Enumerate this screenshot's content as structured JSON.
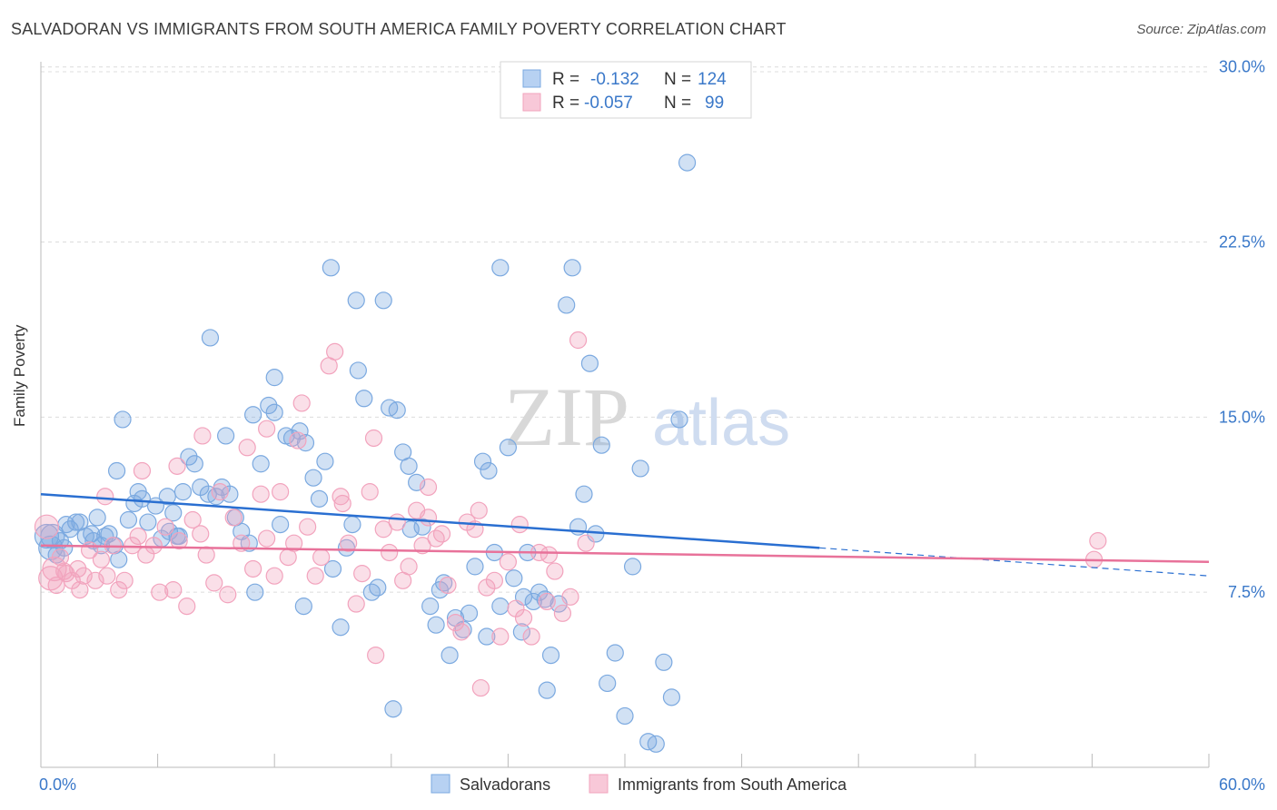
{
  "header": {
    "title": "SALVADORAN VS IMMIGRANTS FROM SOUTH AMERICA FAMILY POVERTY CORRELATION CHART",
    "source": "Source: ZipAtlas.com"
  },
  "watermark": {
    "zip": "ZIP",
    "atlas": "atlas"
  },
  "colors": {
    "blue": "#7ba9e0",
    "blue_line": "#2a6fd1",
    "pink": "#f2a3bd",
    "pink_line": "#e8729a",
    "grid": "#dcdcdc",
    "tick_label": "#3a78c9"
  },
  "chart_data": {
    "type": "scatter",
    "title": "SALVADORAN VS IMMIGRANTS FROM SOUTH AMERICA FAMILY POVERTY CORRELATION CHART",
    "xlabel": "",
    "ylabel": "Family Poverty",
    "xlim": [
      0,
      60
    ],
    "ylim": [
      0,
      31
    ],
    "x_tick_labels": [
      "0.0%",
      "60.0%"
    ],
    "y_ticks": [
      7.5,
      15.0,
      22.5,
      30.0
    ],
    "y_tick_labels": [
      "7.5%",
      "15.0%",
      "22.5%",
      "30.0%"
    ],
    "grid": "horizontal dashed",
    "legend_top": [
      {
        "r_label": "R =",
        "r_value": "-0.132",
        "n_label": "N =",
        "n_value": "124",
        "color": "blue"
      },
      {
        "r_label": "R =",
        "r_value": "-0.057",
        "n_label": "N =",
        "n_value": "99",
        "color": "pink"
      }
    ],
    "legend_bottom": [
      "Salvadorans",
      "Immigrants from South America"
    ],
    "series": [
      {
        "name": "Salvadorans",
        "color": "blue",
        "trend": {
          "x0": 0,
          "y0": 11.7,
          "x1": 40,
          "y1": 9.4,
          "dash_x1": 60,
          "dash_y1": 8.2
        },
        "points": [
          [
            0.3,
            9.9
          ],
          [
            0.5,
            9.4
          ],
          [
            0.6,
            9.9
          ],
          [
            0.8,
            9.1
          ],
          [
            1.0,
            9.7
          ],
          [
            1.2,
            9.4
          ],
          [
            1.5,
            10.2
          ],
          [
            1.8,
            10.5
          ],
          [
            2.0,
            10.5
          ],
          [
            2.3,
            9.9
          ],
          [
            2.6,
            10.0
          ],
          [
            2.9,
            10.7
          ],
          [
            3.1,
            9.5
          ],
          [
            3.3,
            9.9
          ],
          [
            3.5,
            10.0
          ],
          [
            3.8,
            9.5
          ],
          [
            4.0,
            8.9
          ],
          [
            4.5,
            10.6
          ],
          [
            4.8,
            11.3
          ],
          [
            5.2,
            11.5
          ],
          [
            5.5,
            10.5
          ],
          [
            5.9,
            11.2
          ],
          [
            6.2,
            9.8
          ],
          [
            6.6,
            10.1
          ],
          [
            7.0,
            9.9
          ],
          [
            7.3,
            11.8
          ],
          [
            7.6,
            13.3
          ],
          [
            7.9,
            13.0
          ],
          [
            8.2,
            12.0
          ],
          [
            8.6,
            11.7
          ],
          [
            9.0,
            11.6
          ],
          [
            9.3,
            12.0
          ],
          [
            9.7,
            11.7
          ],
          [
            10.0,
            10.7
          ],
          [
            10.3,
            10.1
          ],
          [
            10.7,
            9.6
          ],
          [
            11.0,
            7.5
          ],
          [
            11.3,
            13.0
          ],
          [
            11.7,
            15.5
          ],
          [
            12.0,
            16.7
          ],
          [
            12.3,
            10.4
          ],
          [
            12.6,
            14.2
          ],
          [
            12.9,
            14.1
          ],
          [
            13.3,
            14.4
          ],
          [
            13.6,
            13.9
          ],
          [
            14.0,
            12.4
          ],
          [
            14.3,
            11.5
          ],
          [
            14.6,
            13.1
          ],
          [
            15.0,
            8.5
          ],
          [
            15.4,
            6.0
          ],
          [
            15.7,
            9.4
          ],
          [
            16.0,
            10.4
          ],
          [
            16.3,
            17.0
          ],
          [
            16.6,
            15.8
          ],
          [
            17.0,
            7.5
          ],
          [
            17.3,
            7.7
          ],
          [
            17.6,
            20.0
          ],
          [
            17.9,
            15.4
          ],
          [
            18.3,
            15.3
          ],
          [
            18.6,
            13.5
          ],
          [
            18.9,
            12.9
          ],
          [
            19.3,
            12.2
          ],
          [
            19.6,
            10.3
          ],
          [
            20.0,
            6.9
          ],
          [
            20.3,
            6.1
          ],
          [
            20.7,
            7.9
          ],
          [
            21.0,
            4.8
          ],
          [
            21.3,
            6.4
          ],
          [
            21.7,
            5.9
          ],
          [
            22.0,
            6.6
          ],
          [
            22.3,
            8.6
          ],
          [
            22.7,
            13.1
          ],
          [
            23.0,
            12.7
          ],
          [
            23.3,
            9.2
          ],
          [
            23.6,
            6.9
          ],
          [
            24.0,
            13.7
          ],
          [
            24.3,
            8.1
          ],
          [
            24.7,
            5.8
          ],
          [
            25.0,
            9.2
          ],
          [
            25.3,
            7.1
          ],
          [
            25.6,
            7.5
          ],
          [
            25.9,
            7.2
          ],
          [
            26.2,
            4.8
          ],
          [
            26.6,
            7.0
          ],
          [
            27.0,
            19.8
          ],
          [
            27.3,
            21.4
          ],
          [
            27.6,
            10.3
          ],
          [
            27.9,
            11.7
          ],
          [
            28.2,
            17.3
          ],
          [
            28.5,
            10.0
          ],
          [
            28.8,
            13.8
          ],
          [
            29.1,
            3.6
          ],
          [
            29.5,
            4.9
          ],
          [
            30.0,
            2.2
          ],
          [
            30.4,
            8.6
          ],
          [
            30.8,
            12.8
          ],
          [
            31.2,
            1.1
          ],
          [
            31.6,
            1.0
          ],
          [
            32.0,
            4.5
          ],
          [
            32.4,
            3.0
          ],
          [
            32.8,
            14.9
          ],
          [
            33.2,
            25.9
          ],
          [
            8.7,
            18.4
          ],
          [
            6.5,
            11.6
          ],
          [
            4.2,
            14.9
          ],
          [
            3.9,
            12.7
          ],
          [
            14.9,
            21.4
          ],
          [
            16.2,
            20.0
          ],
          [
            23.6,
            21.4
          ],
          [
            12.0,
            15.2
          ],
          [
            10.9,
            15.1
          ],
          [
            9.5,
            14.2
          ],
          [
            5.0,
            11.8
          ],
          [
            7.1,
            9.9
          ],
          [
            13.5,
            6.9
          ],
          [
            19.0,
            10.2
          ],
          [
            20.5,
            7.6
          ],
          [
            22.9,
            5.6
          ],
          [
            24.8,
            7.3
          ],
          [
            26.0,
            3.3
          ],
          [
            6.8,
            10.9
          ],
          [
            1.3,
            10.4
          ],
          [
            2.7,
            9.7
          ],
          [
            18.1,
            2.5
          ]
        ]
      },
      {
        "name": "Immigrants from South America",
        "color": "pink",
        "trend": {
          "x0": 0,
          "y0": 9.5,
          "x1": 60,
          "y1": 8.8
        },
        "points": [
          [
            0.3,
            10.3
          ],
          [
            0.5,
            8.1
          ],
          [
            0.7,
            8.5
          ],
          [
            1.0,
            9.0
          ],
          [
            1.3,
            8.3
          ],
          [
            1.6,
            8.0
          ],
          [
            1.9,
            8.5
          ],
          [
            2.2,
            8.2
          ],
          [
            2.5,
            9.3
          ],
          [
            2.8,
            8.0
          ],
          [
            3.1,
            8.9
          ],
          [
            3.4,
            8.2
          ],
          [
            3.7,
            9.5
          ],
          [
            4.0,
            7.6
          ],
          [
            4.3,
            8.0
          ],
          [
            4.7,
            9.5
          ],
          [
            5.0,
            9.9
          ],
          [
            5.4,
            9.1
          ],
          [
            5.8,
            9.5
          ],
          [
            6.1,
            7.5
          ],
          [
            6.4,
            10.3
          ],
          [
            6.8,
            7.6
          ],
          [
            7.1,
            9.7
          ],
          [
            7.5,
            6.9
          ],
          [
            7.8,
            10.6
          ],
          [
            8.2,
            10.0
          ],
          [
            8.5,
            9.1
          ],
          [
            8.9,
            7.9
          ],
          [
            9.2,
            11.8
          ],
          [
            9.6,
            7.4
          ],
          [
            9.9,
            10.7
          ],
          [
            10.3,
            9.6
          ],
          [
            10.6,
            13.7
          ],
          [
            10.9,
            8.5
          ],
          [
            11.3,
            11.7
          ],
          [
            11.6,
            9.8
          ],
          [
            12.0,
            8.2
          ],
          [
            12.3,
            11.8
          ],
          [
            12.7,
            9.0
          ],
          [
            13.0,
            9.6
          ],
          [
            13.4,
            15.6
          ],
          [
            13.7,
            10.3
          ],
          [
            14.1,
            8.2
          ],
          [
            14.4,
            9.0
          ],
          [
            14.8,
            17.2
          ],
          [
            15.1,
            17.8
          ],
          [
            15.5,
            11.3
          ],
          [
            15.8,
            9.6
          ],
          [
            16.2,
            7.0
          ],
          [
            16.5,
            8.3
          ],
          [
            16.9,
            11.8
          ],
          [
            17.2,
            4.8
          ],
          [
            17.6,
            10.2
          ],
          [
            17.9,
            9.2
          ],
          [
            18.3,
            10.5
          ],
          [
            18.6,
            8.0
          ],
          [
            18.9,
            8.6
          ],
          [
            19.3,
            11.0
          ],
          [
            19.6,
            9.5
          ],
          [
            19.9,
            10.7
          ],
          [
            20.3,
            9.8
          ],
          [
            20.6,
            10.0
          ],
          [
            20.9,
            7.8
          ],
          [
            21.3,
            6.2
          ],
          [
            21.6,
            5.8
          ],
          [
            21.9,
            10.5
          ],
          [
            22.3,
            10.2
          ],
          [
            22.6,
            3.4
          ],
          [
            22.9,
            7.7
          ],
          [
            23.3,
            8.0
          ],
          [
            23.6,
            5.6
          ],
          [
            24.0,
            8.8
          ],
          [
            24.4,
            6.8
          ],
          [
            24.8,
            6.4
          ],
          [
            25.2,
            5.6
          ],
          [
            25.6,
            9.2
          ],
          [
            26.0,
            7.1
          ],
          [
            26.4,
            8.4
          ],
          [
            26.8,
            6.6
          ],
          [
            27.2,
            7.3
          ],
          [
            27.6,
            18.3
          ],
          [
            28.0,
            9.6
          ],
          [
            1.2,
            8.4
          ],
          [
            0.8,
            7.8
          ],
          [
            2.0,
            7.6
          ],
          [
            3.3,
            11.6
          ],
          [
            5.2,
            12.7
          ],
          [
            7.0,
            12.9
          ],
          [
            8.3,
            14.2
          ],
          [
            11.6,
            14.5
          ],
          [
            13.2,
            14.0
          ],
          [
            15.4,
            11.6
          ],
          [
            17.1,
            14.1
          ],
          [
            19.9,
            12.0
          ],
          [
            22.5,
            11.0
          ],
          [
            24.6,
            10.4
          ],
          [
            26.1,
            9.1
          ],
          [
            54.3,
            9.7
          ],
          [
            54.1,
            8.9
          ]
        ]
      }
    ]
  }
}
